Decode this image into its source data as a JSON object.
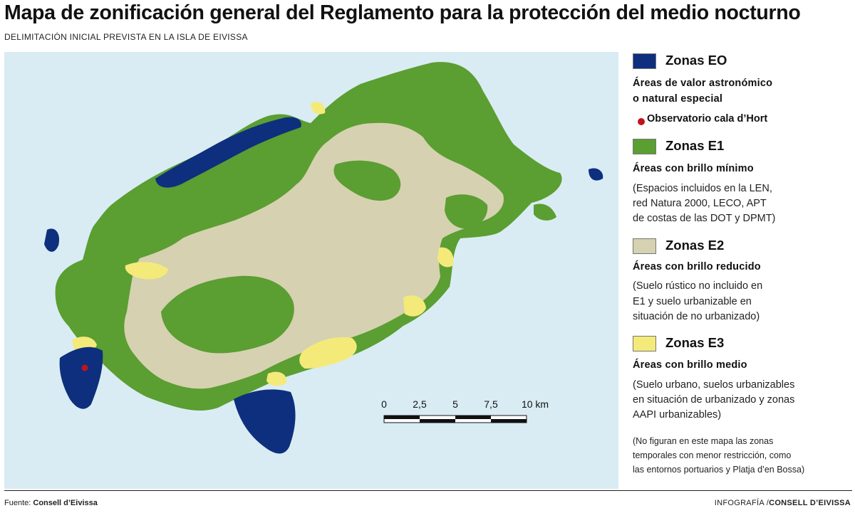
{
  "header": {
    "title": "Mapa de zonificación general del Reglamento para la protección del medio nocturno",
    "subtitle": "DELIMITACIÓN INICIAL PREVISTA EN LA ISLA DE EIVISSA"
  },
  "colors": {
    "sea": "#d9ecf3",
    "zone_eo": "#0e2f7d",
    "zone_e1": "#5b9e32",
    "zone_e2": "#d6d1b0",
    "zone_e3": "#f4ea7a",
    "observatory": "#c0141d"
  },
  "legend": {
    "eo": {
      "label": "Zonas EO",
      "desc_line1": "Áreas de valor astronómico",
      "desc_line2": "o natural especial",
      "observatory": "Observatorio cala d’Hort"
    },
    "e1": {
      "label": "Zonas E1",
      "desc": "Áreas con brillo mínimo",
      "note_line1": "(Espacios incluidos en la LEN,",
      "note_line2": "red Natura 2000, LECO, APT",
      "note_line3": "de costas de las DOT y DPMT)"
    },
    "e2": {
      "label": "Zonas E2",
      "desc": "Áreas con brillo reducido",
      "note_line1": "(Suelo rústico no incluido en",
      "note_line2": "E1 y suelo urbanizable en",
      "note_line3": "situación de no urbanizado)"
    },
    "e3": {
      "label": "Zonas E3",
      "desc": "Áreas con brillo medio",
      "note_line1": "(Suelo urbano, suelos urbanizables",
      "note_line2": "en situación de urbanizado y zonas",
      "note_line3": "AAPI urbanizables)"
    },
    "footnote_line1": "(No figuran en este mapa las zonas",
    "footnote_line2": "temporales con menor restricción, como",
    "footnote_line3": "las entornos portuarios y Platja d’en Bossa)"
  },
  "scale_bar": {
    "labels": [
      "0",
      "2,5",
      "5",
      "7,5",
      "10 km"
    ]
  },
  "footer": {
    "source_prefix": "Fuente:",
    "source_name": "Consell d’Eivissa",
    "credit_prefix": "INFOGRAFÍA /",
    "credit_name": "CONSELL D’EIVISSA"
  }
}
